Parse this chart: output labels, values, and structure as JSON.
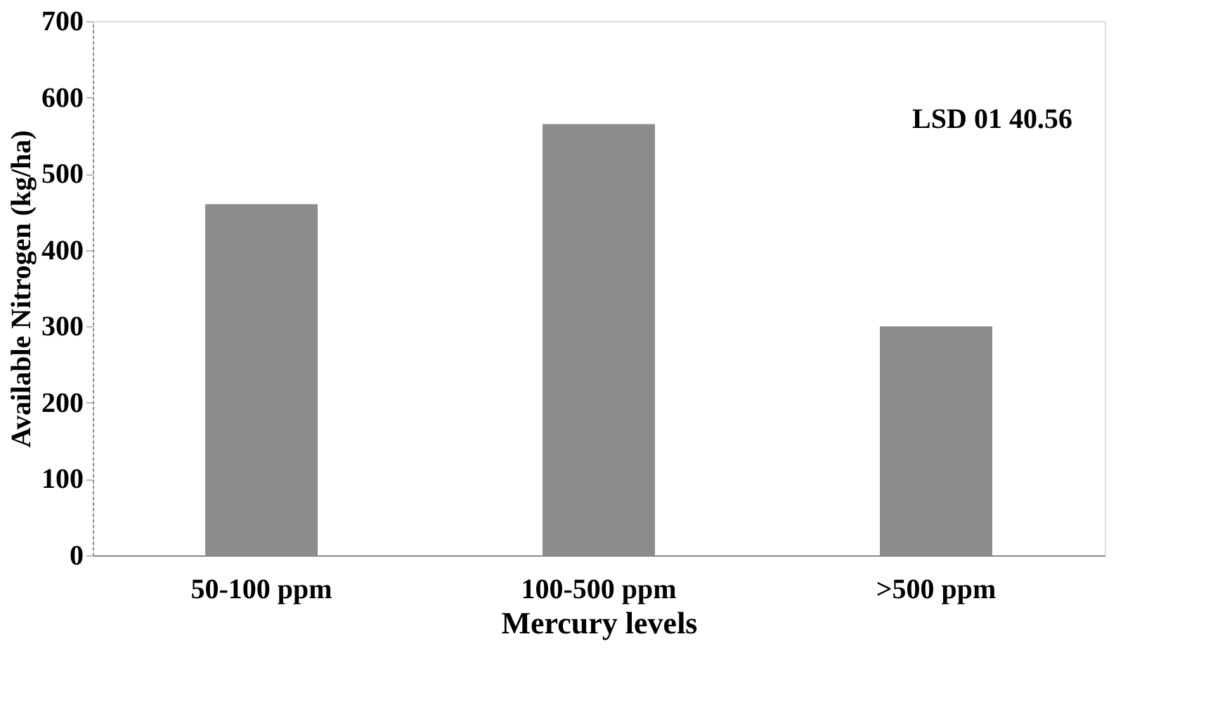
{
  "chart_data": {
    "type": "bar",
    "categories": [
      "50-100 ppm",
      "100-500 ppm",
      ">500 ppm"
    ],
    "values": [
      460,
      565,
      300
    ],
    "color": "#8c8c8c",
    "xlabel": "Mercury levels",
    "ylabel": "Available Nitrogen (kg/ha)",
    "ylim": [
      0,
      700
    ],
    "yticks": [
      0,
      100,
      200,
      300,
      400,
      500,
      600,
      700
    ],
    "annotations": [
      "LSD 01 40.56"
    ],
    "grid": false
  }
}
